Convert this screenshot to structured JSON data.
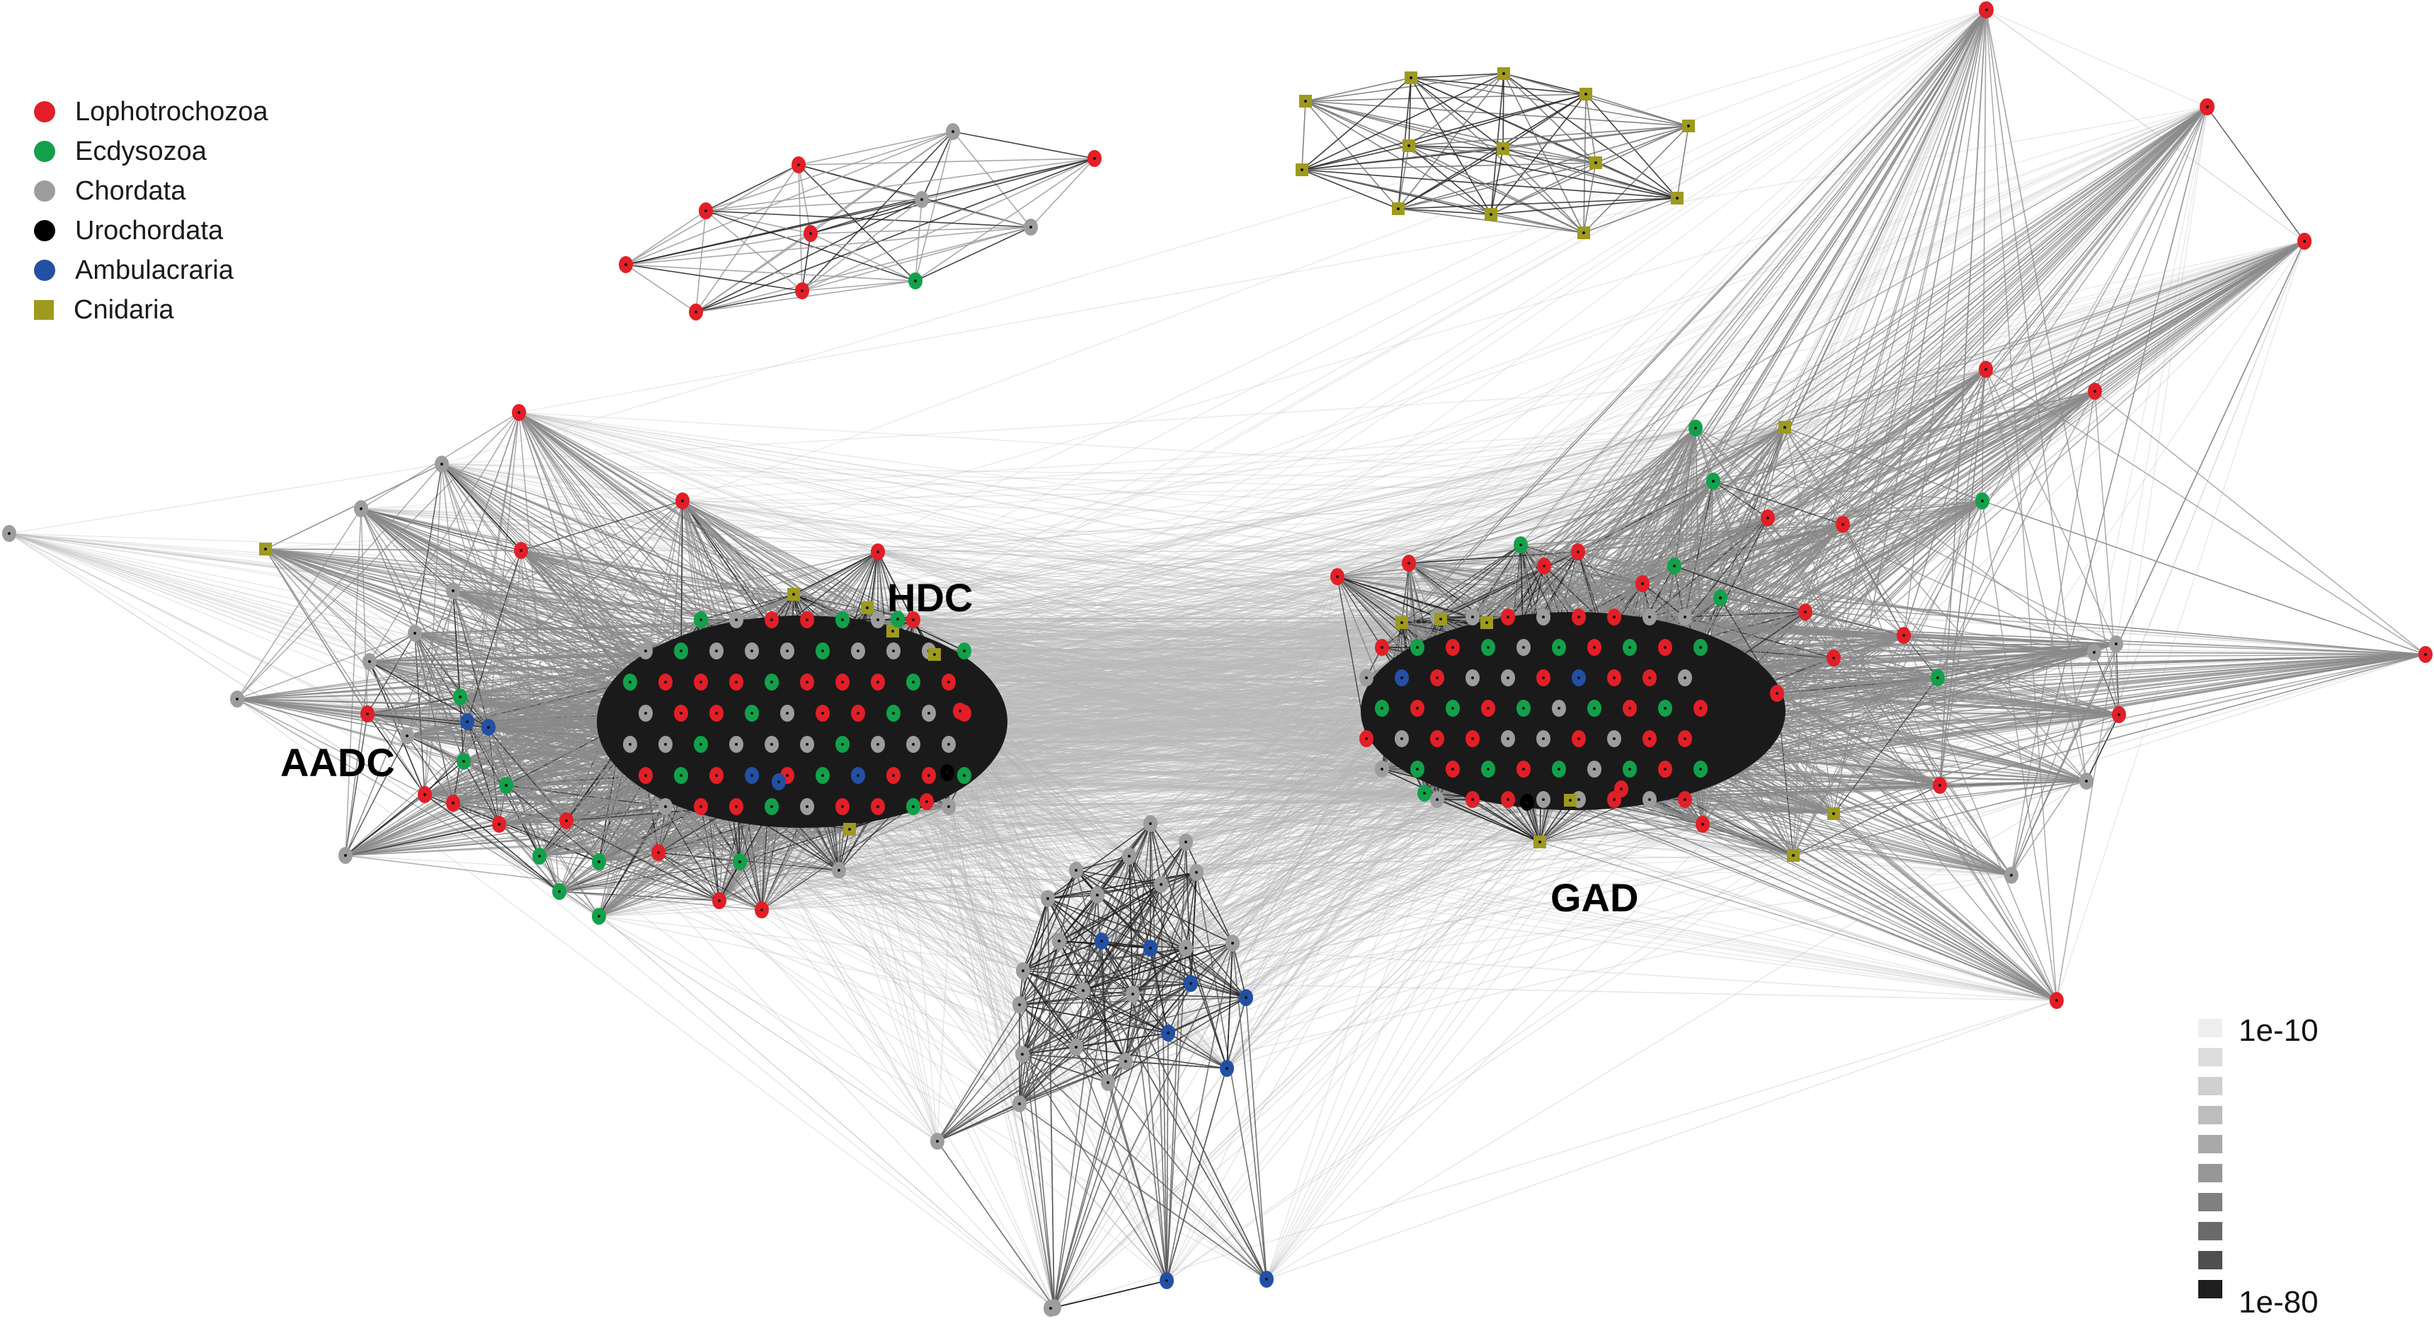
{
  "legend": [
    {
      "label": "Lophotrochozoa",
      "color": "#e21f26",
      "shape": "circle"
    },
    {
      "label": "Ecdysozoa",
      "color": "#12a14a",
      "shape": "circle"
    },
    {
      "label": "Chordata",
      "color": "#9d9d9d",
      "shape": "circle"
    },
    {
      "label": "Urochordata",
      "color": "#000000",
      "shape": "circle"
    },
    {
      "label": "Ambulacraria",
      "color": "#2250a5",
      "shape": "circle"
    },
    {
      "label": "Cnidaria",
      "color": "#9d9a1f",
      "shape": "square"
    }
  ],
  "clusters": {
    "aadc": "AADC",
    "hdc": "HDC",
    "gad": "GAD"
  },
  "edge_scale": {
    "min_label": "1e-10",
    "max_label": "1e-80",
    "steps": [
      "#eeeeee",
      "#dcdcdc",
      "#cfcfcf",
      "#bdbdbd",
      "#a9a9a9",
      "#979797",
      "#808080",
      "#6a6a6a",
      "#4f4f4f",
      "#1e1e1e"
    ]
  },
  "colors": {
    "L": "#e21f26",
    "E": "#12a14a",
    "C": "#9d9d9d",
    "U": "#000000",
    "A": "#2250a5",
    "N": "#9d9a1f"
  }
}
